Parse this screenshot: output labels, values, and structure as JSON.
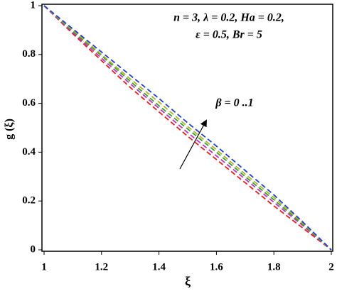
{
  "chart_data": {
    "type": "line",
    "xlabel": "ξ",
    "ylabel": "g (ξ)",
    "annotations": [
      "n = 3, λ = 0.2, Ha = 0.2,",
      "ε = 0.5, Br = 5",
      "β = 0 ..1"
    ],
    "x": [
      1,
      1.1,
      1.2,
      1.3,
      1.4,
      1.5,
      1.6,
      1.7,
      1.8,
      1.9,
      2
    ],
    "series": [
      {
        "color": "#e02020",
        "values": [
          1,
          0.885,
          0.775,
          0.665,
          0.565,
          0.465,
          0.37,
          0.275,
          0.18,
          0.09,
          0
        ]
      },
      {
        "color": "#c030c0",
        "values": [
          1,
          0.89,
          0.785,
          0.68,
          0.58,
          0.48,
          0.385,
          0.29,
          0.195,
          0.1,
          0
        ]
      },
      {
        "color": "#30a030",
        "values": [
          1,
          0.895,
          0.795,
          0.69,
          0.59,
          0.495,
          0.4,
          0.3,
          0.205,
          0.105,
          0
        ]
      },
      {
        "color": "#b0b020",
        "values": [
          1,
          0.9,
          0.8,
          0.7,
          0.605,
          0.505,
          0.41,
          0.31,
          0.215,
          0.11,
          0
        ]
      },
      {
        "color": "#2040d0",
        "values": [
          1,
          0.905,
          0.81,
          0.715,
          0.62,
          0.52,
          0.425,
          0.325,
          0.225,
          0.115,
          0
        ]
      }
    ],
    "xlim": [
      1,
      2
    ],
    "ylim": [
      0,
      1
    ],
    "xticks": [
      1,
      1.2,
      1.4,
      1.6,
      1.8,
      2
    ],
    "yticks": [
      0,
      0.2,
      0.4,
      0.6,
      0.8,
      1
    ],
    "dashed": true
  }
}
